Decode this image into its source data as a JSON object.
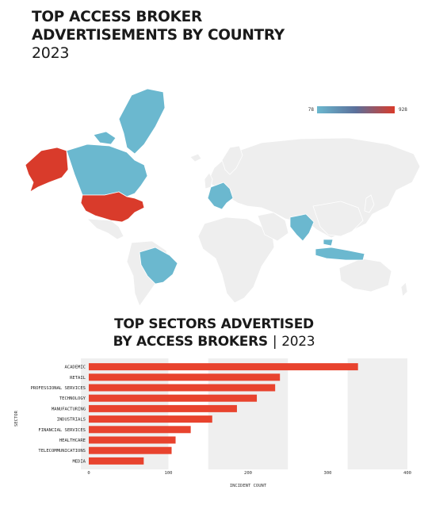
{
  "map": {
    "title_line1": "TOP ACCESS BROKER",
    "title_line2": "ADVERTISEMENTS BY COUNTRY",
    "year": "2023",
    "legend_min": "78",
    "legend_max": "928",
    "colors": {
      "low": "#6bb8cf",
      "high": "#d93b2b",
      "land": "#eeeeee"
    },
    "highlighted_countries": [
      {
        "name": "United States",
        "level": "high"
      },
      {
        "name": "Canada",
        "level": "low"
      },
      {
        "name": "Greenland",
        "level": "low"
      },
      {
        "name": "Brazil",
        "level": "low"
      },
      {
        "name": "France",
        "level": "low"
      },
      {
        "name": "Germany",
        "level": "low"
      },
      {
        "name": "Italy",
        "level": "low"
      },
      {
        "name": "India",
        "level": "low"
      },
      {
        "name": "Indonesia",
        "level": "low"
      }
    ]
  },
  "chart_data": {
    "type": "bar",
    "orientation": "horizontal",
    "title": "TOP SECTORS ADVERTISED",
    "title_line2": "BY ACCESS BROKERS",
    "year": "2023",
    "ylabel": "SECTOR",
    "xlabel": "INCIDENT COUNT",
    "categories": [
      "ACADEMIC",
      "RETAIL",
      "PROFESSIONAL SERVICES",
      "TECHNOLOGY",
      "MANUFACTURING",
      "INDUSTRIALS",
      "FINANCIAL SERVICES",
      "HEALTHCARE",
      "TELECOMMUNICATIONS",
      "MEDIA"
    ],
    "values": [
      338,
      240,
      234,
      211,
      186,
      155,
      128,
      109,
      104,
      69
    ],
    "xlim": [
      0,
      400
    ],
    "xticks": [
      "0",
      "100",
      "200",
      "300",
      "400"
    ],
    "bar_color": "#e8432e",
    "band_color": "#efefef"
  }
}
